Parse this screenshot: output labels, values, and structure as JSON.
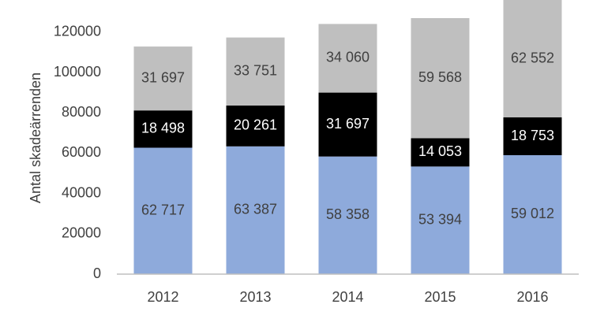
{
  "chart_data": {
    "type": "stacked_bar",
    "y_label": "Antal skadeärrenden",
    "categories": [
      "2012",
      "2013",
      "2014",
      "2015",
      "2016"
    ],
    "series": [
      {
        "color": "#8eaadb",
        "label_color": "#404040",
        "values": [
          62717,
          63387,
          58358,
          53394,
          59012
        ],
        "value_labels": [
          "62 717",
          "63 387",
          "58 358",
          "53 394",
          "59 012"
        ]
      },
      {
        "color": "#000000",
        "label_color": "#ffffff",
        "values": [
          18498,
          20261,
          31697,
          14053,
          18753
        ],
        "value_labels": [
          "18 498",
          "20 261",
          "31 697",
          "14 053",
          "18 753"
        ]
      },
      {
        "color": "#bfbfbf",
        "label_color": "#404040",
        "values": [
          31697,
          33751,
          34060,
          59568,
          62552
        ],
        "value_labels": [
          "31 697",
          "33 751",
          "34 060",
          "59 568",
          "62 552"
        ]
      }
    ],
    "ylim": [
      0,
      136000
    ],
    "yticks": [
      0,
      20000,
      40000,
      60000,
      80000,
      100000,
      120000
    ],
    "grid": false
  }
}
